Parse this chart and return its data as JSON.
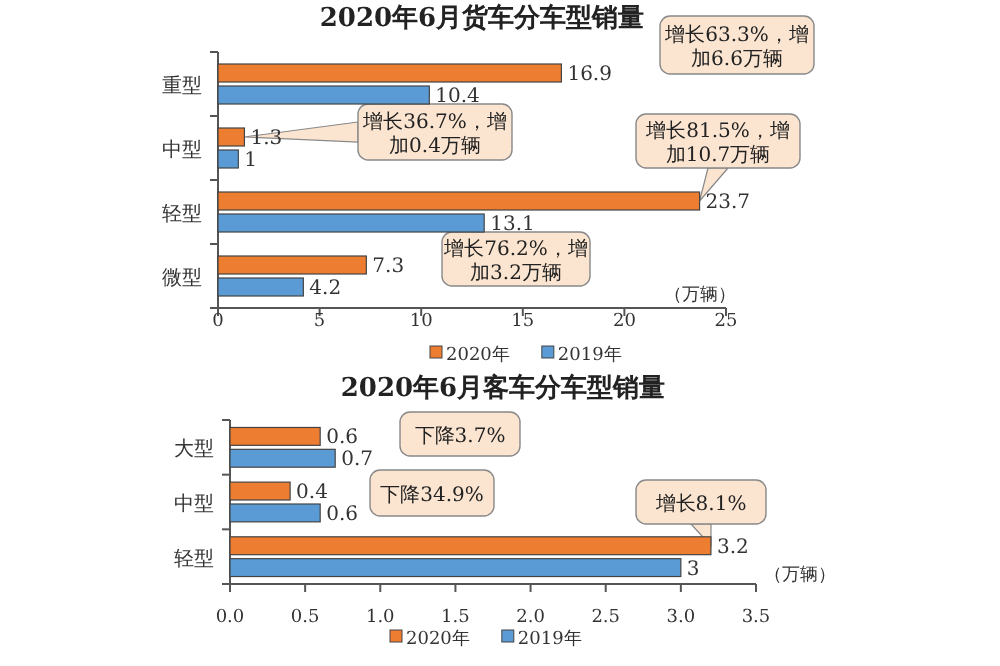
{
  "chart_data": [
    {
      "type": "bar",
      "orientation": "horizontal",
      "title": "2020年6月货车分车型销量",
      "categories": [
        "重型",
        "中型",
        "轻型",
        "微型"
      ],
      "series": [
        {
          "name": "2020年",
          "color": "#ed7d31",
          "values": [
            16.9,
            1.3,
            23.7,
            7.3
          ]
        },
        {
          "name": "2019年",
          "color": "#5b9bd5",
          "values": [
            10.4,
            1.0,
            13.1,
            4.2
          ]
        }
      ],
      "xlim": [
        0,
        25
      ],
      "xticks": [
        0,
        5,
        10,
        15,
        20,
        25
      ],
      "xlabel": "（万辆）",
      "data_labels": true,
      "legend": "bottom",
      "annotations": [
        "增长63.3%，增加6.6万辆",
        {
          "text": "增长36.7%，增加0.4万辆",
          "x": 1.3,
          "y": "中型"
        },
        {
          "text": "增长81.5%，增加10.7万辆",
          "x": 23.7,
          "y": "轻型"
        },
        "增长76.2%，增加3.2万辆"
      ]
    },
    {
      "type": "bar",
      "orientation": "horizontal",
      "title": "2020年6月客车分车型销量",
      "categories": [
        "大型",
        "中型",
        "轻型"
      ],
      "series": [
        {
          "name": "2020年",
          "color": "#ed7d31",
          "values": [
            0.6,
            0.4,
            3.2
          ]
        },
        {
          "name": "2019年",
          "color": "#5b9bd5",
          "values": [
            0.7,
            0.6,
            3.0
          ]
        }
      ],
      "xlim": [
        0,
        3.5
      ],
      "xticks": [
        {
          "value": 0,
          "label": "0.0"
        },
        {
          "value": 0.5,
          "label": "0.5"
        },
        {
          "value": 1,
          "label": "1.0"
        },
        {
          "value": 1.5,
          "label": "1.5"
        },
        {
          "value": 2,
          "label": "2.0"
        },
        {
          "value": 2.5,
          "label": "2.5"
        },
        {
          "value": 3,
          "label": "3.0"
        },
        {
          "value": 3.5,
          "label": "3.5"
        }
      ],
      "xlabel": "（万辆）",
      "data_labels": true,
      "legend": "bottom",
      "annotations": [
        "下降3.7%",
        "下降34.9%",
        {
          "text": "增长8.1%",
          "x": 3.2,
          "y": "轻型"
        }
      ]
    }
  ]
}
